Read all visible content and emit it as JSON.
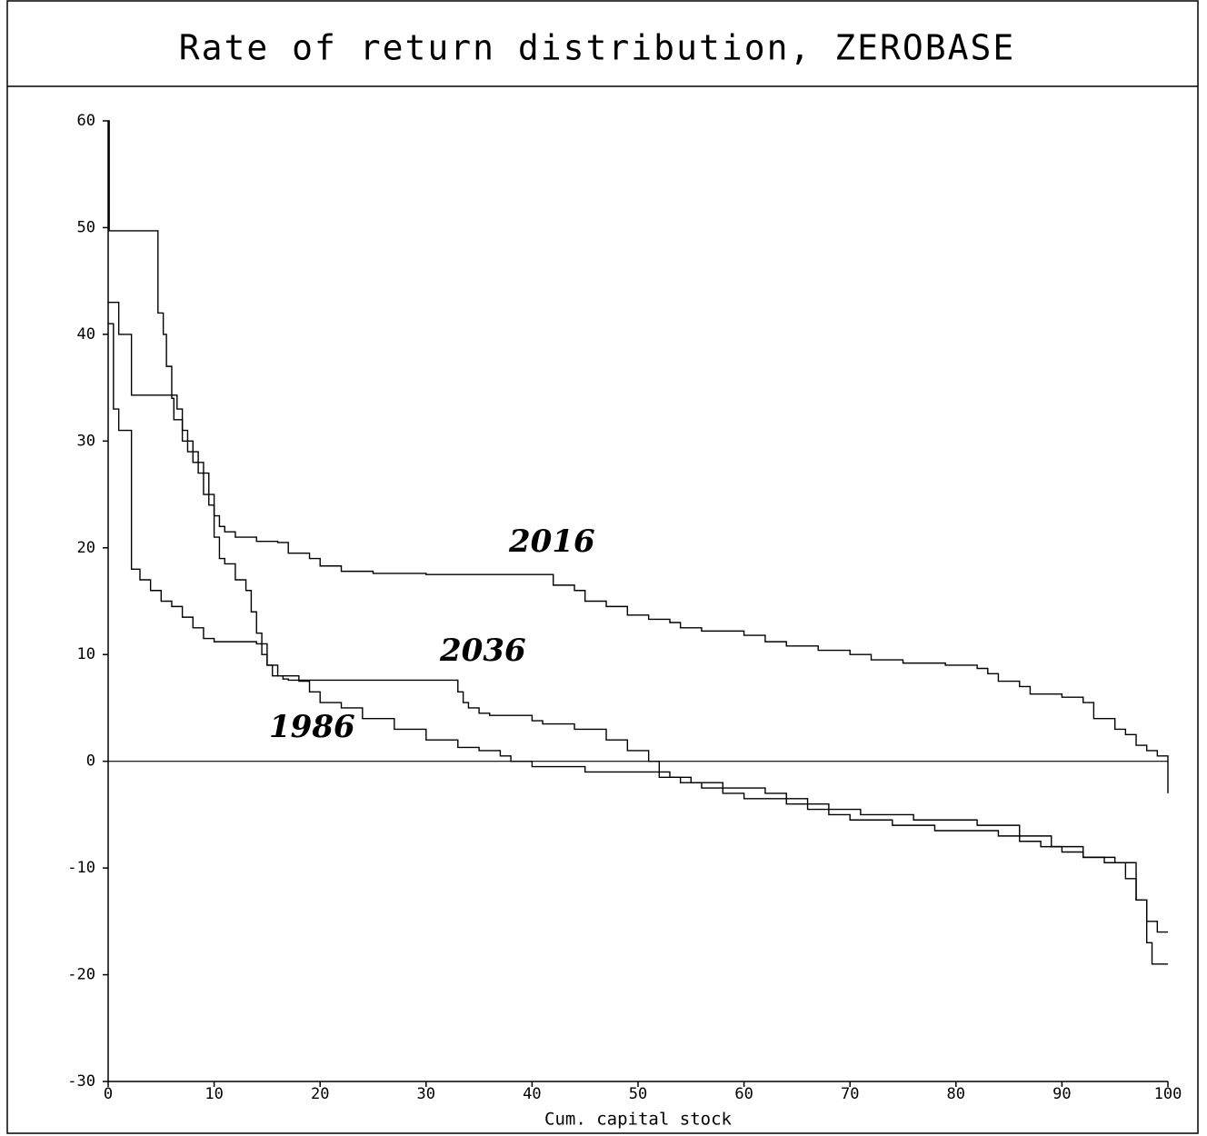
{
  "chart_data": {
    "type": "step-line",
    "title": "Rate of return distribution, ZEROBASE",
    "x_label": "Cum. capital stock",
    "xlim": [
      0,
      100
    ],
    "ylim": [
      -30,
      60
    ],
    "xticks": [
      0,
      10,
      20,
      30,
      40,
      50,
      60,
      70,
      80,
      90,
      100
    ],
    "yticks": [
      -30,
      -20,
      -10,
      0,
      10,
      20,
      30,
      40,
      50,
      60
    ],
    "grid": false,
    "series": [
      {
        "name": "2016",
        "color": "#000000",
        "x": [
          0,
          0.1,
          4.7,
          5.2,
          5.5,
          6,
          6.2,
          7,
          8,
          9,
          10,
          10.5,
          11,
          12,
          14,
          16,
          17,
          19,
          20,
          22,
          25,
          30,
          40,
          42,
          44,
          45,
          47,
          49,
          51,
          53,
          54,
          56,
          60,
          62,
          64,
          67,
          70,
          72,
          75,
          79,
          82,
          83,
          84,
          86,
          87,
          90,
          92,
          93,
          95,
          96,
          97,
          98,
          99,
          100
        ],
        "values": [
          60,
          49.7,
          42,
          40,
          37,
          34,
          32,
          30,
          28,
          25,
          23,
          22,
          21.5,
          21,
          20.6,
          20.5,
          19.5,
          19,
          18.3,
          17.8,
          17.6,
          17.5,
          17.5,
          16.5,
          16,
          15,
          14.5,
          13.7,
          13.3,
          13,
          12.5,
          12.2,
          11.8,
          11.2,
          10.8,
          10.4,
          10,
          9.5,
          9.2,
          9,
          8.7,
          8.2,
          7.5,
          7,
          6.3,
          6,
          5.5,
          4,
          3,
          2.5,
          1.5,
          1,
          0.5,
          -3
        ]
      },
      {
        "name": "2036",
        "color": "#000000",
        "x": [
          0,
          1,
          2.2,
          6.5,
          7,
          7.5,
          8.5,
          9.5,
          10,
          10.5,
          11,
          12,
          13,
          13.5,
          14,
          14.5,
          15,
          15.5,
          16.5,
          17,
          33,
          33.5,
          34,
          35,
          36,
          40,
          41,
          44,
          47,
          49,
          51,
          52,
          53,
          54,
          56,
          58,
          60,
          64,
          66,
          68,
          70,
          74,
          78,
          84,
          86,
          88,
          90,
          92,
          94,
          96,
          97,
          98,
          99,
          100
        ],
        "values": [
          43,
          40,
          34.3,
          33,
          31,
          29,
          27,
          24,
          21,
          19,
          18.5,
          17,
          16,
          14,
          12,
          10,
          9,
          8,
          7.7,
          7.6,
          6.5,
          5.5,
          5,
          4.5,
          4.3,
          3.8,
          3.5,
          3,
          2,
          1,
          0,
          -1,
          -1.5,
          -2,
          -2.5,
          -3,
          -3.5,
          -4,
          -4.5,
          -5,
          -5.5,
          -6,
          -6.5,
          -7,
          -7.5,
          -8,
          -8.5,
          -9,
          -9.5,
          -11,
          -13,
          -15,
          -16,
          -16
        ]
      },
      {
        "name": "1986",
        "color": "#000000",
        "x": [
          0,
          0.5,
          1,
          2.2,
          3,
          4,
          5,
          6,
          7,
          8,
          9,
          10,
          14,
          15,
          16,
          18,
          19,
          20,
          22,
          24,
          27,
          30,
          33,
          35,
          37,
          38,
          40,
          45,
          52,
          55,
          58,
          62,
          64,
          66,
          68,
          71,
          76,
          82,
          86,
          89,
          92,
          95,
          97,
          98,
          98.5,
          100
        ],
        "values": [
          41,
          33,
          31,
          18,
          17,
          16,
          15,
          14.5,
          13.5,
          12.5,
          11.5,
          11.2,
          11,
          9,
          8,
          7.5,
          6.5,
          5.5,
          5,
          4,
          3,
          2,
          1.3,
          1,
          0.5,
          0,
          -0.5,
          -1,
          -1.5,
          -2,
          -2.5,
          -3,
          -3.5,
          -4,
          -4.5,
          -5,
          -5.5,
          -6,
          -7,
          -8,
          -9,
          -9.5,
          -13,
          -17,
          -19,
          -19
        ]
      }
    ]
  }
}
